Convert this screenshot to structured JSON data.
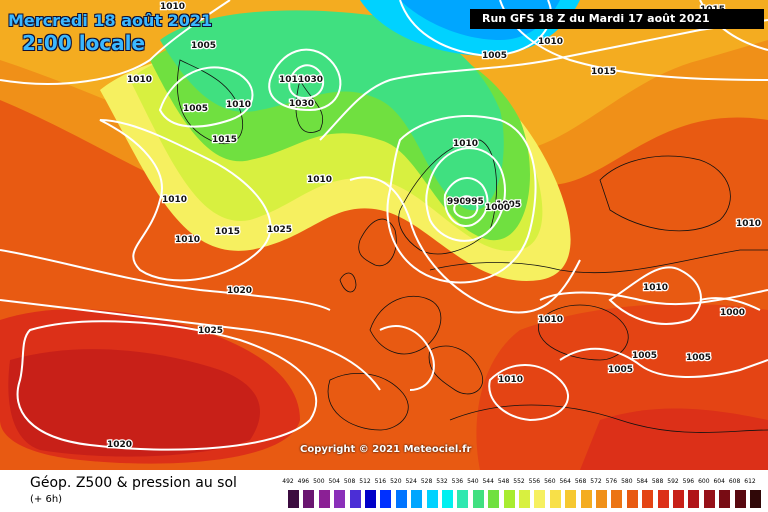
{
  "header": {
    "date_title": "Mercredi 18 août 2021",
    "time_title": "2:00 locale",
    "run_info": "Run GFS 18 Z du Mardi 17 août 2021",
    "copyright": "Copyright © 2021 Meteociel.fr"
  },
  "footer": {
    "title": "Géop. Z500 & pression au sol",
    "subtitle": "(+ 6h)"
  },
  "legend": {
    "ticks": [
      "492",
      "496",
      "500",
      "504",
      "508",
      "512",
      "516",
      "520",
      "524",
      "528",
      "532",
      "536",
      "540",
      "544",
      "548",
      "552",
      "556",
      "560",
      "564",
      "568",
      "572",
      "576",
      "580",
      "584",
      "588",
      "592",
      "596",
      "600",
      "604",
      "608",
      "612"
    ],
    "colors": [
      "#3b0c3f",
      "#6a1570",
      "#8b2095",
      "#8a2fb9",
      "#4b2ed6",
      "#0000c8",
      "#0030ff",
      "#0074ff",
      "#00a6ff",
      "#00d2ff",
      "#00f0f0",
      "#2ee8b0",
      "#40e080",
      "#70e040",
      "#a8ec30",
      "#d8f040",
      "#f6f060",
      "#f8e048",
      "#f6c830",
      "#f4ac20",
      "#f09018",
      "#ec7414",
      "#e85a12",
      "#e44414",
      "#dc3018",
      "#c82018",
      "#b01418",
      "#961018",
      "#780c14",
      "#580810",
      "#300808"
    ]
  },
  "isobars": [
    {
      "label": "1010"
    },
    {
      "label": "1005"
    },
    {
      "label": "1010"
    },
    {
      "label": "1005"
    },
    {
      "label": "1010"
    },
    {
      "label": "1005"
    },
    {
      "label": "1010"
    },
    {
      "label": "1010"
    },
    {
      "label": "1030"
    },
    {
      "label": "1030"
    },
    {
      "label": "1015"
    },
    {
      "label": "1015"
    },
    {
      "label": "1010"
    },
    {
      "label": "1010"
    },
    {
      "label": "1015"
    },
    {
      "label": "1025"
    },
    {
      "label": "1020"
    },
    {
      "label": "1025"
    },
    {
      "label": "1020"
    },
    {
      "label": "990"
    },
    {
      "label": "995"
    },
    {
      "label": "1005"
    },
    {
      "label": "1000"
    },
    {
      "label": "1010"
    },
    {
      "label": "1010"
    },
    {
      "label": "1010"
    },
    {
      "label": "1010"
    },
    {
      "label": "1005"
    },
    {
      "label": "1005"
    },
    {
      "label": "1000"
    },
    {
      "label": "1010"
    },
    {
      "label": "1005"
    },
    {
      "label": "1015"
    },
    {
      "label": "1010"
    }
  ]
}
